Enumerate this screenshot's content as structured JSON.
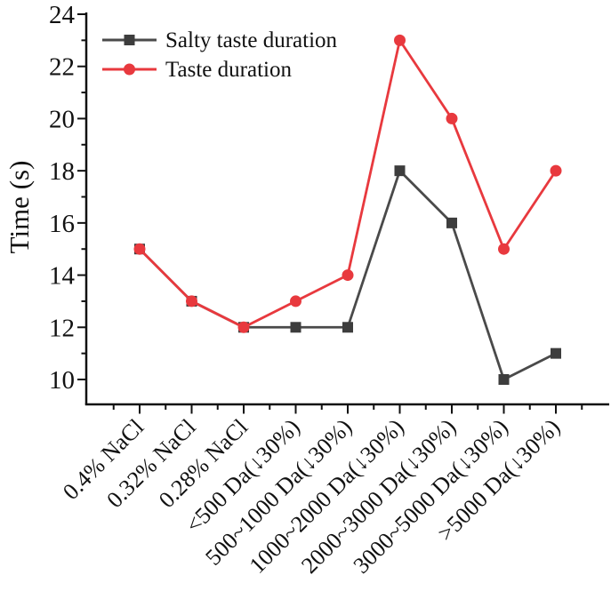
{
  "chart_data": {
    "type": "line",
    "title": "",
    "ylabel": "Time (s)",
    "xlabel": "",
    "categories": [
      "0.4% NaCl",
      "0.32% NaCl",
      "0.28% NaCl",
      "<500 Da(↓30%)",
      "500~1000 Da(↓30%)",
      "1000~2000 Da(↓30%)",
      "2000~3000 Da(↓30%)",
      "3000~5000 Da(↓30%)",
      ">5000 Da(↓30%)"
    ],
    "series": [
      {
        "name": "Salty taste duration",
        "marker": "square",
        "line_color": "#4a4a4a",
        "marker_color": "#3d3d3d",
        "values": [
          15,
          13,
          12,
          12,
          12,
          18,
          16,
          10,
          11
        ]
      },
      {
        "name": "Taste duration",
        "marker": "circle",
        "line_color": "#e8393e",
        "marker_color": "#e8393e",
        "values": [
          15,
          13,
          12,
          13,
          14,
          23,
          20,
          15,
          18
        ]
      }
    ],
    "ylim": [
      9,
      24
    ],
    "yticks": [
      10,
      12,
      14,
      16,
      18,
      20,
      22,
      24
    ],
    "y_minor_ticks": [
      11,
      13,
      15,
      17,
      19,
      21,
      23
    ],
    "legend_position": "top-left",
    "grid": false,
    "axis_color": "#111111",
    "background_color": "#ffffff"
  }
}
